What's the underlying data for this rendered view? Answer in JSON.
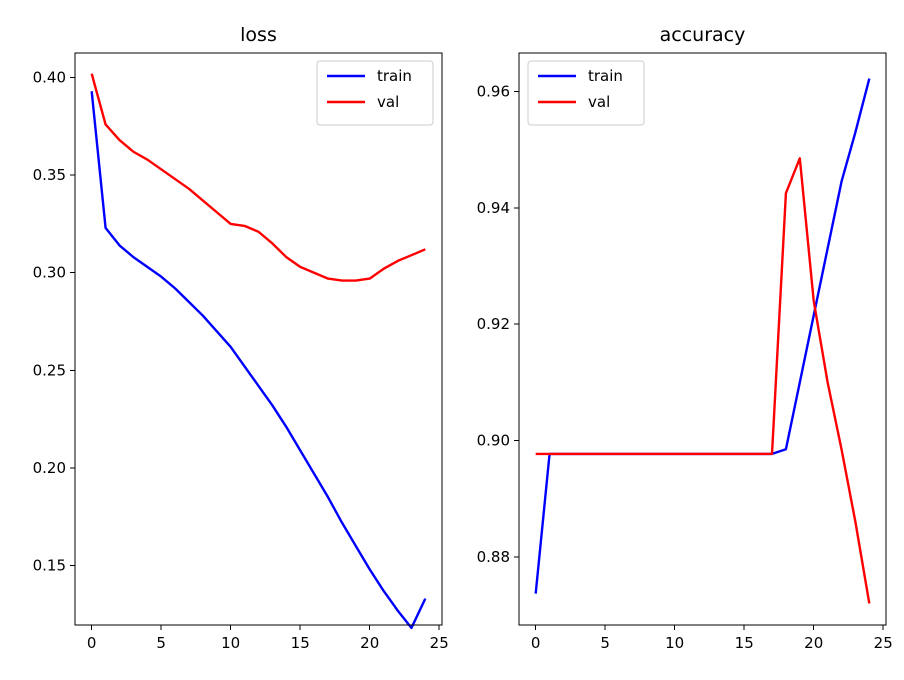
{
  "chart_data": [
    {
      "type": "line",
      "title": "loss",
      "xlabel": "",
      "ylabel": "",
      "xlim": [
        -1.2,
        25.2
      ],
      "ylim": [
        0.1195,
        0.4126
      ],
      "xticks": [
        0,
        5,
        10,
        15,
        20,
        25
      ],
      "xtick_labels": [
        "0",
        "5",
        "10",
        "15",
        "20",
        "25"
      ],
      "yticks": [
        0.15,
        0.2,
        0.25,
        0.3,
        0.35,
        0.4
      ],
      "ytick_labels": [
        "0.15",
        "0.20",
        "0.25",
        "0.30",
        "0.35",
        "0.40"
      ],
      "grid": false,
      "legend": "top-right",
      "x": [
        0,
        1,
        2,
        3,
        4,
        5,
        6,
        7,
        8,
        9,
        10,
        11,
        12,
        13,
        14,
        15,
        16,
        17,
        18,
        19,
        20,
        21,
        22,
        23,
        24
      ],
      "series": [
        {
          "name": "train",
          "color": "#0000ff",
          "values": [
            0.393,
            0.323,
            0.314,
            0.308,
            0.303,
            0.298,
            0.292,
            0.285,
            0.278,
            0.27,
            0.262,
            0.252,
            0.242,
            0.232,
            0.221,
            0.209,
            0.197,
            0.185,
            0.172,
            0.16,
            0.148,
            0.137,
            0.127,
            0.118,
            0.133
          ]
        },
        {
          "name": "val",
          "color": "#ff0000",
          "values": [
            0.402,
            0.376,
            0.368,
            0.362,
            0.358,
            0.353,
            0.348,
            0.343,
            0.337,
            0.331,
            0.325,
            0.324,
            0.321,
            0.315,
            0.308,
            0.303,
            0.3,
            0.297,
            0.296,
            0.296,
            0.297,
            0.302,
            0.306,
            0.309,
            0.312
          ]
        }
      ]
    },
    {
      "type": "line",
      "title": "accuracy",
      "xlabel": "",
      "ylabel": "",
      "xlim": [
        -1.2,
        25.2
      ],
      "ylim": [
        0.8683,
        0.9666
      ],
      "xticks": [
        0,
        5,
        10,
        15,
        20,
        25
      ],
      "xtick_labels": [
        "0",
        "5",
        "10",
        "15",
        "20",
        "25"
      ],
      "yticks": [
        0.88,
        0.9,
        0.92,
        0.94,
        0.96
      ],
      "ytick_labels": [
        "0.88",
        "0.90",
        "0.92",
        "0.94",
        "0.96"
      ],
      "grid": false,
      "legend": "top-left",
      "x": [
        0,
        1,
        2,
        3,
        4,
        5,
        6,
        7,
        8,
        9,
        10,
        11,
        12,
        13,
        14,
        15,
        16,
        17,
        18,
        19,
        20,
        21,
        22,
        23,
        24
      ],
      "series": [
        {
          "name": "train",
          "color": "#0000ff",
          "values": [
            0.8737,
            0.8977,
            0.8977,
            0.8977,
            0.8977,
            0.8977,
            0.8977,
            0.8977,
            0.8977,
            0.8977,
            0.8977,
            0.8977,
            0.8977,
            0.8977,
            0.8977,
            0.8977,
            0.8977,
            0.8977,
            0.8985,
            0.91,
            0.9215,
            0.933,
            0.9445,
            0.953,
            0.9622
          ]
        },
        {
          "name": "val",
          "color": "#ff0000",
          "values": [
            0.8977,
            0.8977,
            0.8977,
            0.8977,
            0.8977,
            0.8977,
            0.8977,
            0.8977,
            0.8977,
            0.8977,
            0.8977,
            0.8977,
            0.8977,
            0.8977,
            0.8977,
            0.8977,
            0.8977,
            0.8977,
            0.9425,
            0.9485,
            0.924,
            0.91,
            0.8985,
            0.886,
            0.872
          ]
        }
      ]
    }
  ]
}
